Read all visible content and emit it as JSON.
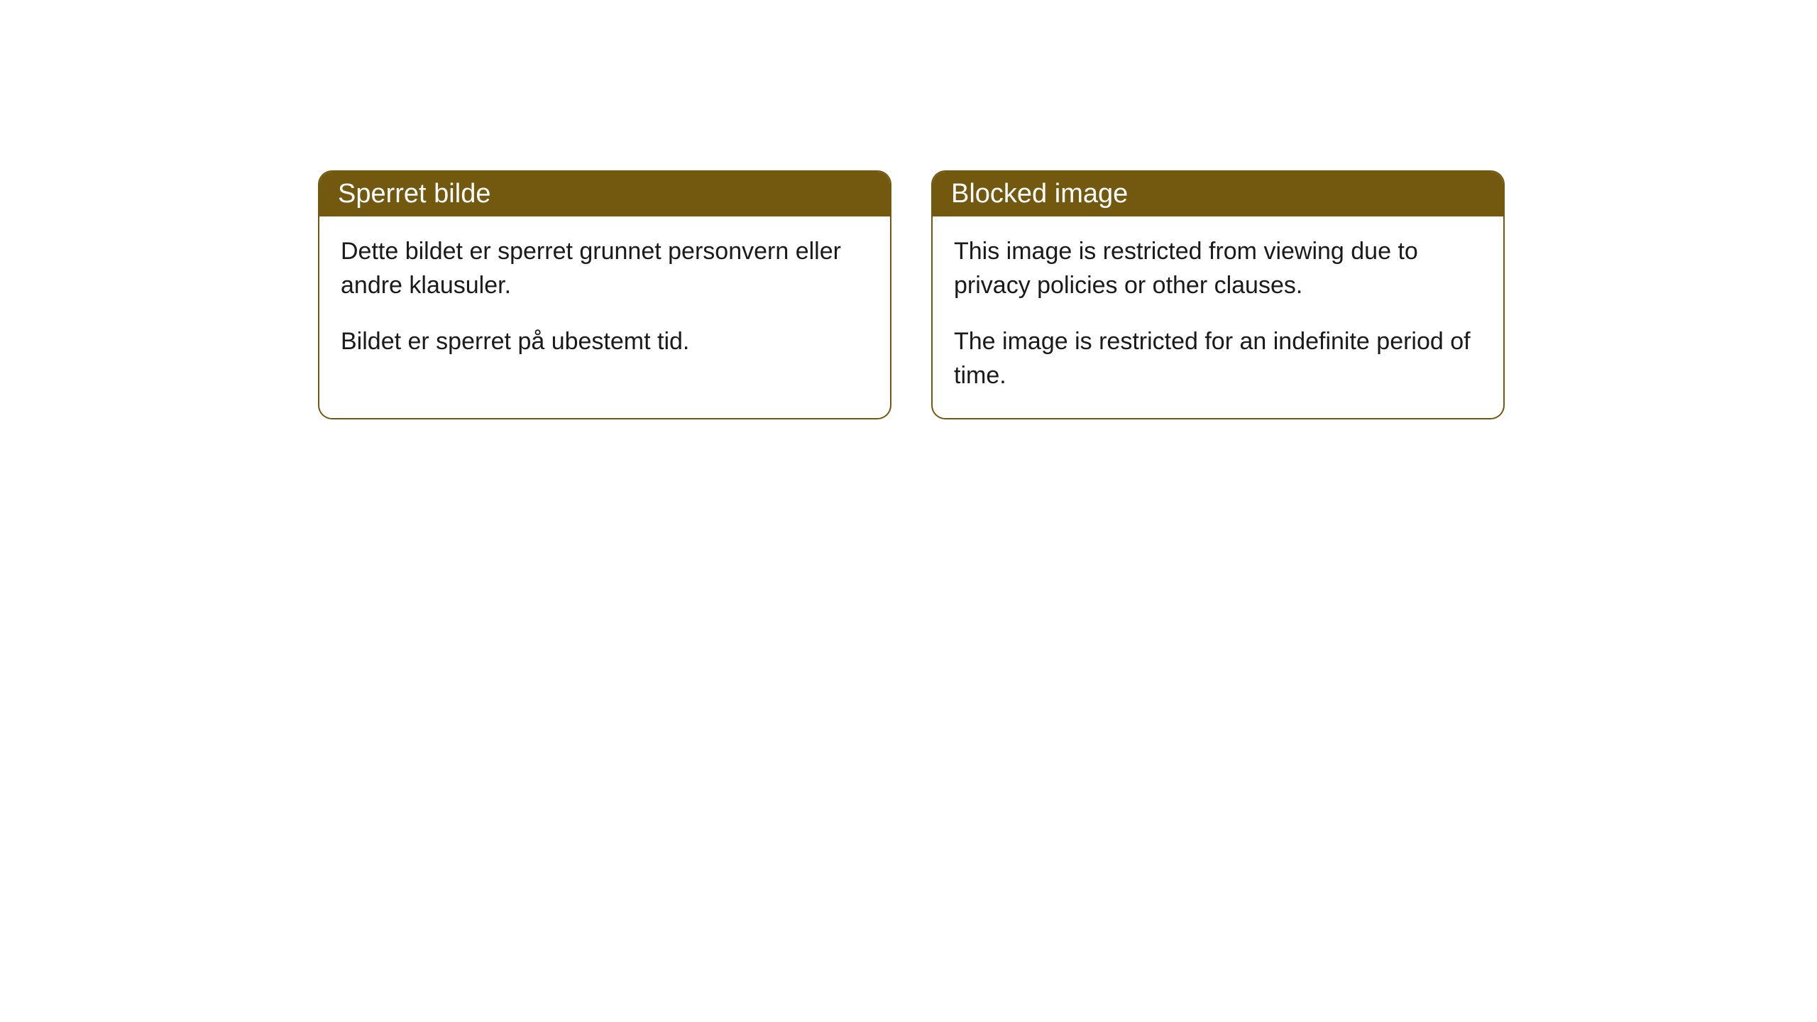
{
  "notices": [
    {
      "title": "Sperret bilde",
      "paragraph1": "Dette bildet er sperret grunnet personvern eller andre klausuler.",
      "paragraph2": "Bildet er sperret på ubestemt tid."
    },
    {
      "title": "Blocked image",
      "paragraph1": "This image is restricted from viewing due to privacy policies or other clauses.",
      "paragraph2": "The image is restricted for an indefinite period of time."
    }
  ],
  "styling": {
    "header_background": "#735810",
    "header_text_color": "#ffffff",
    "border_color": "#735810",
    "body_background": "#ffffff",
    "body_text_color": "#1a1a1a",
    "border_radius": 20,
    "title_fontsize": 38,
    "body_fontsize": 34
  }
}
